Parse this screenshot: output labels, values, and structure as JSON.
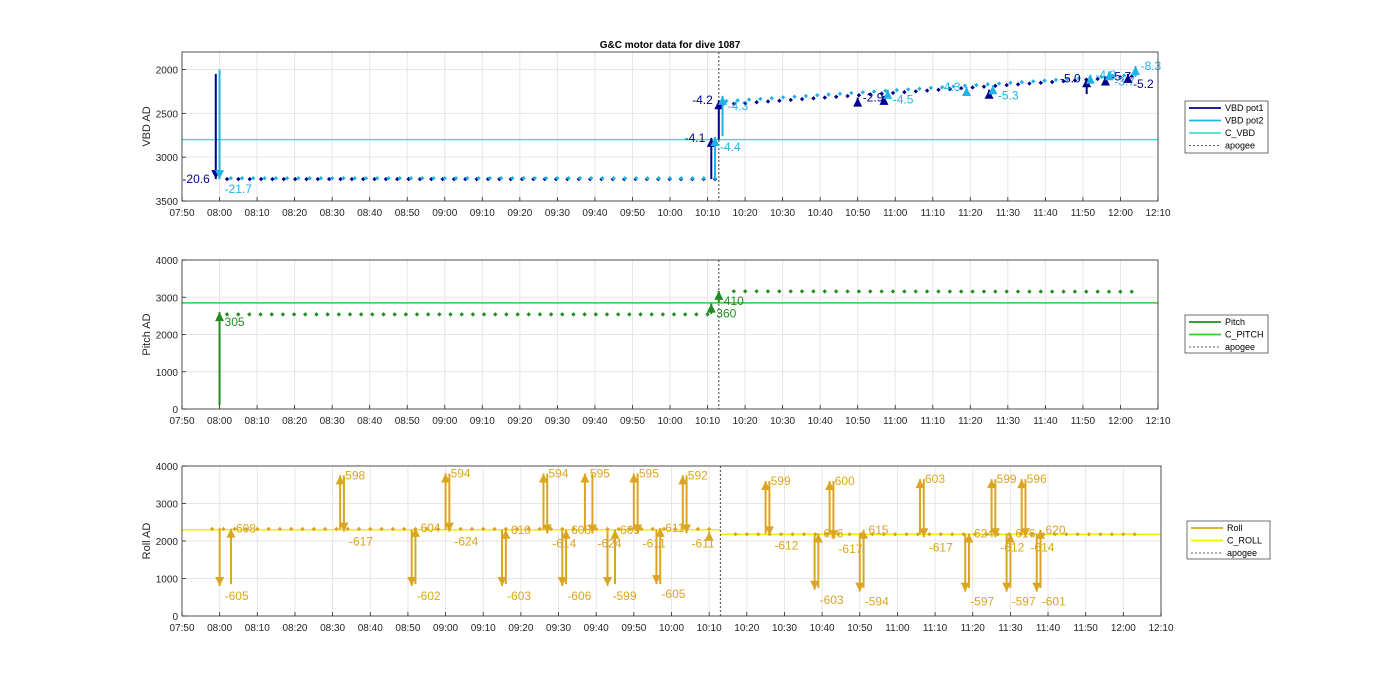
{
  "figure": {
    "title": "G&C motor data for dive 1087"
  },
  "time_ticks": [
    "07:50",
    "08:00",
    "08:10",
    "08:20",
    "08:30",
    "08:40",
    "08:50",
    "09:00",
    "09:10",
    "09:20",
    "09:30",
    "09:40",
    "09:50",
    "10:00",
    "10:10",
    "10:20",
    "10:30",
    "10:40",
    "10:50",
    "11:00",
    "11:10",
    "11:20",
    "11:30",
    "11:40",
    "11:50",
    "12:00",
    "12:10"
  ],
  "colors": {
    "vbd_pot1": "#00008b",
    "vbd_pot2": "#20b2e6",
    "c_vbd": "#40e0d0",
    "pitch": "#228b22",
    "c_pitch": "#32cd32",
    "roll": "#daa520",
    "c_roll": "#f0f000",
    "apogee": "#606060",
    "grid": "#e6e6e6",
    "axis": "#262626"
  },
  "chart_data": [
    {
      "type": "line",
      "id": "vbd",
      "title": "G&C motor data for dive 1087",
      "ylabel": "VBD AD",
      "xlim": [
        "07:50",
        "12:10"
      ],
      "ylim": [
        3500,
        1800
      ],
      "y_reversed": true,
      "yticks": [
        2000,
        2500,
        3000,
        3500
      ],
      "grid": true,
      "legend_position": "right",
      "legend": [
        "VBD pot1",
        "VBD pot2",
        "C_VBD",
        "apogee"
      ],
      "apogee_time": "10:13",
      "reference_lines": [
        {
          "name": "C_VBD",
          "y": 2800
        }
      ],
      "series": [
        {
          "name": "VBD pot1",
          "dots_start": "08:02",
          "dots_end": "12:03",
          "y_start": 3250,
          "y_end": 2080,
          "segments": [
            [
              "08:02",
              "10:12",
              3250,
              3250
            ],
            [
              "10:14",
              "12:03",
              2400,
              2080
            ]
          ]
        },
        {
          "name": "VBD pot2",
          "dots_start": "08:03",
          "dots_end": "12:04",
          "y_start": 3240,
          "y_end": 2060,
          "segments": [
            [
              "08:03",
              "10:12",
              3240,
              3240
            ],
            [
              "10:15",
              "12:04",
              2360,
              2060
            ]
          ]
        }
      ],
      "moves": [
        {
          "series": "VBD pot1",
          "time": "07:59",
          "from": 2050,
          "to": 3250,
          "label": "-20.6",
          "label_side": "left"
        },
        {
          "series": "VBD pot2",
          "time": "08:00",
          "from": 2000,
          "to": 3250,
          "label": "-21.7",
          "label_side": "below-right"
        },
        {
          "series": "VBD pot1",
          "time": "10:11",
          "from": 3250,
          "to": 2780,
          "label": "-4.1",
          "label_side": "left"
        },
        {
          "series": "VBD pot2",
          "time": "10:12",
          "from": 3230,
          "to": 2770,
          "label": "-4.4",
          "label_side": "below-right"
        },
        {
          "series": "VBD pot1",
          "time": "10:13",
          "from": 2800,
          "to": 2350,
          "label": "-4.2",
          "label_side": "left"
        },
        {
          "series": "VBD pot2",
          "time": "10:14",
          "from": 2760,
          "to": 2300,
          "label": "-4.3",
          "label_side": "below-right"
        },
        {
          "series": "VBD pot1",
          "time": "10:50",
          "from": 2400,
          "to": 2320,
          "label": "-2.9",
          "label_side": "right"
        },
        {
          "series": "VBD pot1",
          "time": "10:57",
          "from": 2380,
          "to": 2300,
          "label": "",
          "label_side": "right"
        },
        {
          "series": "VBD pot2",
          "time": "10:58",
          "from": 2330,
          "to": 2230,
          "label": "-4.5",
          "label_side": "below-right"
        },
        {
          "series": "VBD pot2",
          "time": "11:19",
          "from": 2280,
          "to": 2200,
          "label": "-4.3",
          "label_side": "left"
        },
        {
          "series": "VBD pot1",
          "time": "11:25",
          "from": 2310,
          "to": 2230,
          "label": "",
          "label_side": "right"
        },
        {
          "series": "VBD pot2",
          "time": "11:26",
          "from": 2260,
          "to": 2180,
          "label": "-5.3",
          "label_side": "below-right"
        },
        {
          "series": "VBD pot1",
          "time": "11:51",
          "from": 2280,
          "to": 2100,
          "label": "-5.0",
          "label_side": "left"
        },
        {
          "series": "VBD pot2",
          "time": "11:52",
          "from": 2150,
          "to": 2060,
          "label": "-4.8",
          "label_side": "right"
        },
        {
          "series": "VBD pot1",
          "time": "11:56",
          "from": 2150,
          "to": 2080,
          "label": "-5.7",
          "label_side": "right"
        },
        {
          "series": "VBD pot2",
          "time": "11:57",
          "from": 2120,
          "to": 2020,
          "label": "-3.7",
          "label_side": "below-right"
        },
        {
          "series": "VBD pot1",
          "time": "12:02",
          "from": 2100,
          "to": 2050,
          "label": "-5.2",
          "label_side": "below-right"
        },
        {
          "series": "VBD pot2",
          "time": "12:04",
          "from": 2050,
          "to": 1960,
          "label": "-8.3",
          "label_side": "right"
        }
      ]
    },
    {
      "type": "line",
      "id": "pitch",
      "ylabel": "Pitch AD",
      "xlim": [
        "07:50",
        "12:10"
      ],
      "ylim": [
        0,
        4000
      ],
      "yticks": [
        0,
        1000,
        2000,
        3000,
        4000
      ],
      "grid": true,
      "legend_position": "right",
      "legend": [
        "Pitch",
        "C_PITCH",
        "apogee"
      ],
      "apogee_time": "10:13",
      "reference_lines": [
        {
          "name": "C_PITCH",
          "y": 2850
        }
      ],
      "series": [
        {
          "name": "Pitch",
          "segments": [
            [
              "08:02",
              "10:10",
              2540,
              2540
            ],
            [
              "10:17",
              "12:03",
              3160,
              3150
            ]
          ]
        }
      ],
      "moves": [
        {
          "series": "Pitch",
          "time": "08:00",
          "from": 100,
          "to": 2600,
          "label": "305",
          "label_side": "below-right"
        },
        {
          "series": "Pitch",
          "time": "10:11",
          "from": 2550,
          "to": 2830,
          "label": "360",
          "label_side": "below-right"
        },
        {
          "series": "Pitch",
          "time": "10:13",
          "from": 2850,
          "to": 3170,
          "label": "410",
          "label_side": "below-right"
        }
      ]
    },
    {
      "type": "line",
      "id": "roll",
      "ylabel": "Roll AD",
      "xlim": [
        "07:50",
        "12:10"
      ],
      "ylim": [
        0,
        4000
      ],
      "yticks": [
        0,
        1000,
        2000,
        3000,
        4000
      ],
      "grid": true,
      "legend_position": "right",
      "legend": [
        "Roll",
        "C_ROLL",
        "apogee"
      ],
      "apogee_time": "10:13",
      "reference_lines": [
        {
          "name": "C_ROLL",
          "y1": 2300,
          "y2": 2180,
          "break_time": "10:13"
        }
      ],
      "series": [
        {
          "name": "Roll",
          "segments": [
            [
              "07:58",
              "10:10",
              2320,
              2320
            ],
            [
              "10:17",
              "12:03",
              2180,
              2180
            ]
          ]
        }
      ],
      "moves": [
        {
          "series": "Roll",
          "time": "08:00",
          "from": 2350,
          "to": 800,
          "label": "-605",
          "label_side": "below-right"
        },
        {
          "series": "Roll",
          "time": "08:03",
          "from": 850,
          "to": 2330,
          "label": "608",
          "label_side": "right"
        },
        {
          "series": "Roll",
          "time": "08:32",
          "from": 2300,
          "to": 3750,
          "label": "598",
          "label_side": "right"
        },
        {
          "series": "Roll",
          "time": "08:33",
          "from": 3750,
          "to": 2250,
          "label": "-617",
          "label_side": "below-right"
        },
        {
          "series": "Roll",
          "time": "08:51",
          "from": 2300,
          "to": 800,
          "label": "-602",
          "label_side": "below-right"
        },
        {
          "series": "Roll",
          "time": "08:52",
          "from": 850,
          "to": 2350,
          "label": "604",
          "label_side": "right"
        },
        {
          "series": "Roll",
          "time": "09:00",
          "from": 2300,
          "to": 3800,
          "label": "594",
          "label_side": "right"
        },
        {
          "series": "Roll",
          "time": "09:01",
          "from": 3800,
          "to": 2250,
          "label": "-624",
          "label_side": "below-right"
        },
        {
          "series": "Roll",
          "time": "09:15",
          "from": 2300,
          "to": 800,
          "label": "-603",
          "label_side": "below-right"
        },
        {
          "series": "Roll",
          "time": "09:16",
          "from": 850,
          "to": 2300,
          "label": "610",
          "label_side": "right"
        },
        {
          "series": "Roll",
          "time": "09:26",
          "from": 2300,
          "to": 3800,
          "label": "594",
          "label_side": "right"
        },
        {
          "series": "Roll",
          "time": "09:27",
          "from": 3800,
          "to": 2200,
          "label": "-614",
          "label_side": "below-right"
        },
        {
          "series": "Roll",
          "time": "09:31",
          "from": 2300,
          "to": 800,
          "label": "-606",
          "label_side": "below-right"
        },
        {
          "series": "Roll",
          "time": "09:32",
          "from": 850,
          "to": 2300,
          "label": "608",
          "label_side": "right"
        },
        {
          "series": "Roll",
          "time": "09:37",
          "from": 2300,
          "to": 3800,
          "label": "595",
          "label_side": "right"
        },
        {
          "series": "Roll",
          "time": "09:39",
          "from": 3800,
          "to": 2200,
          "label": "-624",
          "label_side": "below-right"
        },
        {
          "series": "Roll",
          "time": "09:43",
          "from": 2300,
          "to": 800,
          "label": "-599",
          "label_side": "below-right"
        },
        {
          "series": "Roll",
          "time": "09:45",
          "from": 850,
          "to": 2300,
          "label": "609",
          "label_side": "right"
        },
        {
          "series": "Roll",
          "time": "09:50",
          "from": 2300,
          "to": 3800,
          "label": "595",
          "label_side": "right"
        },
        {
          "series": "Roll",
          "time": "09:51",
          "from": 3800,
          "to": 2200,
          "label": "-611",
          "label_side": "below-right"
        },
        {
          "series": "Roll",
          "time": "09:56",
          "from": 2300,
          "to": 850,
          "label": "-605",
          "label_side": "below-right"
        },
        {
          "series": "Roll",
          "time": "09:57",
          "from": 850,
          "to": 2350,
          "label": "611",
          "label_side": "right"
        },
        {
          "series": "Roll",
          "time": "10:03",
          "from": 2300,
          "to": 3750,
          "label": "592",
          "label_side": "right"
        },
        {
          "series": "Roll",
          "time": "10:04",
          "from": 3750,
          "to": 2200,
          "label": "-611",
          "label_side": "below-right"
        },
        {
          "series": "Roll",
          "time": "10:10",
          "from": 2200,
          "to": 2250,
          "label": "",
          "label_side": "right"
        },
        {
          "series": "Roll",
          "time": "10:25",
          "from": 2200,
          "to": 3600,
          "label": "599",
          "label_side": "right"
        },
        {
          "series": "Roll",
          "time": "10:26",
          "from": 3600,
          "to": 2150,
          "label": "-612",
          "label_side": "below-right"
        },
        {
          "series": "Roll",
          "time": "10:38",
          "from": 2150,
          "to": 700,
          "label": "-603",
          "label_side": "below-right"
        },
        {
          "series": "Roll",
          "time": "10:39",
          "from": 750,
          "to": 2200,
          "label": "616",
          "label_side": "right"
        },
        {
          "series": "Roll",
          "time": "10:42",
          "from": 2200,
          "to": 3600,
          "label": "600",
          "label_side": "right"
        },
        {
          "series": "Roll",
          "time": "10:43",
          "from": 3600,
          "to": 2050,
          "label": "-617",
          "label_side": "below-right"
        },
        {
          "series": "Roll",
          "time": "10:50",
          "from": 2200,
          "to": 650,
          "label": "-594",
          "label_side": "below-right"
        },
        {
          "series": "Roll",
          "time": "10:51",
          "from": 750,
          "to": 2300,
          "label": "615",
          "label_side": "right"
        },
        {
          "series": "Roll",
          "time": "11:06",
          "from": 2200,
          "to": 3650,
          "label": "603",
          "label_side": "right"
        },
        {
          "series": "Roll",
          "time": "11:07",
          "from": 3650,
          "to": 2100,
          "label": "-617",
          "label_side": "below-right"
        },
        {
          "series": "Roll",
          "time": "11:18",
          "from": 2200,
          "to": 650,
          "label": "-597",
          "label_side": "below-right"
        },
        {
          "series": "Roll",
          "time": "11:19",
          "from": 750,
          "to": 2200,
          "label": "624",
          "label_side": "right"
        },
        {
          "series": "Roll",
          "time": "11:25",
          "from": 2200,
          "to": 3650,
          "label": "599",
          "label_side": "right"
        },
        {
          "series": "Roll",
          "time": "11:26",
          "from": 3650,
          "to": 2100,
          "label": "-612",
          "label_side": "below-right"
        },
        {
          "series": "Roll",
          "time": "11:29",
          "from": 2200,
          "to": 650,
          "label": "-597",
          "label_side": "below-right"
        },
        {
          "series": "Roll",
          "time": "11:30",
          "from": 750,
          "to": 2200,
          "label": "616",
          "label_side": "right"
        },
        {
          "series": "Roll",
          "time": "11:33",
          "from": 2200,
          "to": 3650,
          "label": "596",
          "label_side": "right"
        },
        {
          "series": "Roll",
          "time": "11:34",
          "from": 3650,
          "to": 2100,
          "label": "-614",
          "label_side": "below-right"
        },
        {
          "series": "Roll",
          "time": "11:37",
          "from": 2200,
          "to": 650,
          "label": "-601",
          "label_side": "below-right"
        },
        {
          "series": "Roll",
          "time": "11:38",
          "from": 750,
          "to": 2300,
          "label": "620",
          "label_side": "right"
        }
      ]
    }
  ]
}
